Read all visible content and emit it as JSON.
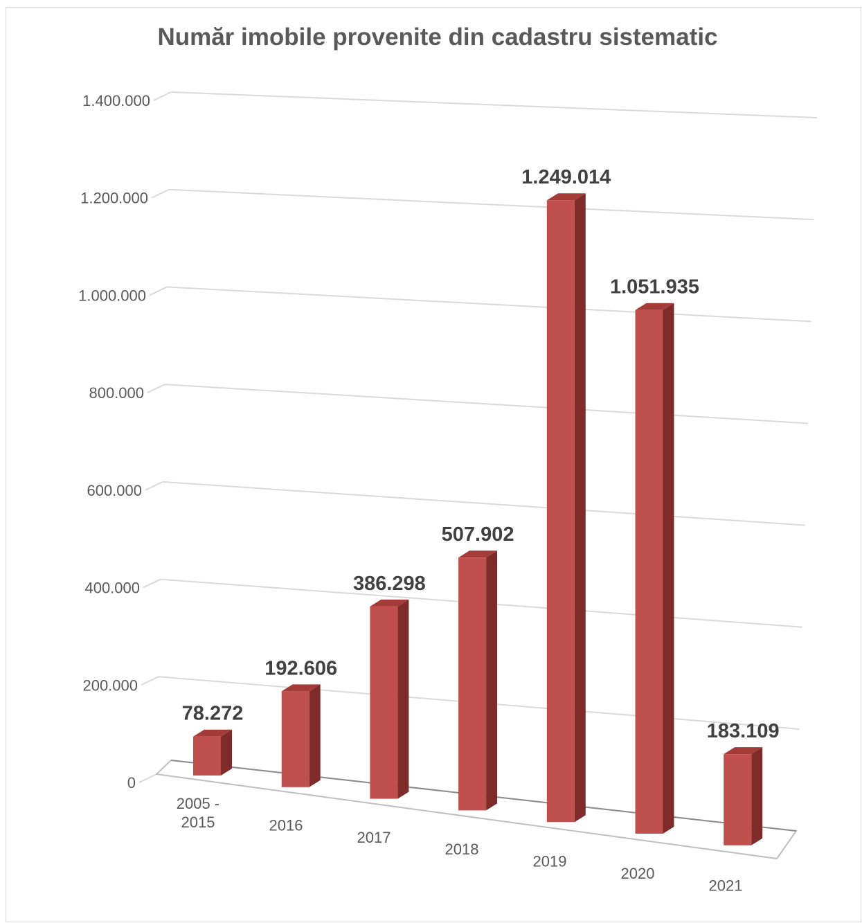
{
  "chart_data": {
    "type": "bar",
    "title": "Număr imobile provenite din cadastru sistematic",
    "categories": [
      [
        "2005 -",
        "2015"
      ],
      [
        "2016"
      ],
      [
        "2017"
      ],
      [
        "2018"
      ],
      [
        "2019"
      ],
      [
        "2020"
      ],
      [
        "2021"
      ]
    ],
    "values": [
      78272,
      192606,
      386298,
      507902,
      1249014,
      1051935,
      183109
    ],
    "value_labels": [
      "78.272",
      "192.606",
      "386.298",
      "507.902",
      "1.249.014",
      "1.051.935",
      "183.109"
    ],
    "yticks": [
      0,
      200000,
      400000,
      600000,
      800000,
      1000000,
      1200000,
      1400000
    ],
    "ytick_labels": [
      "0",
      "200.000",
      "400.000",
      "600.000",
      "800.000",
      "1.000.000",
      "1.200.000",
      "1.400.000"
    ],
    "ylim": [
      0,
      1400000
    ],
    "grid": true,
    "style": "3d-column",
    "colors": {
      "front": "#c0504d",
      "side": "#7f2b29",
      "top": "#a33b38",
      "grid": "#d9d9d9"
    }
  }
}
